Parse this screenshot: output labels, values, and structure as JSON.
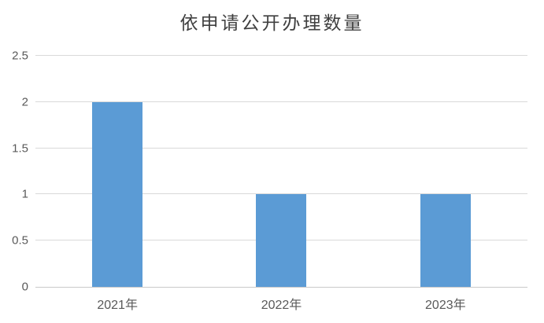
{
  "chart_data": {
    "type": "bar",
    "title": "依申请公开办理数量",
    "categories": [
      "2021年",
      "2022年",
      "2023年"
    ],
    "values": [
      2,
      1,
      1
    ],
    "xlabel": "",
    "ylabel": "",
    "ylim": [
      0,
      2.5
    ],
    "ytick_step": 0.5,
    "ytick_labels": [
      "0",
      "0.5",
      "1",
      "1.5",
      "2",
      "2.5"
    ],
    "grid": true,
    "legend_position": "none",
    "colors": {
      "bar_fill": "#5b9bd5",
      "gridline": "#d9d9d9",
      "axis_line": "#c9c9c9",
      "tick_text": "#595959",
      "title_text": "#404040",
      "background": "#ffffff"
    }
  }
}
